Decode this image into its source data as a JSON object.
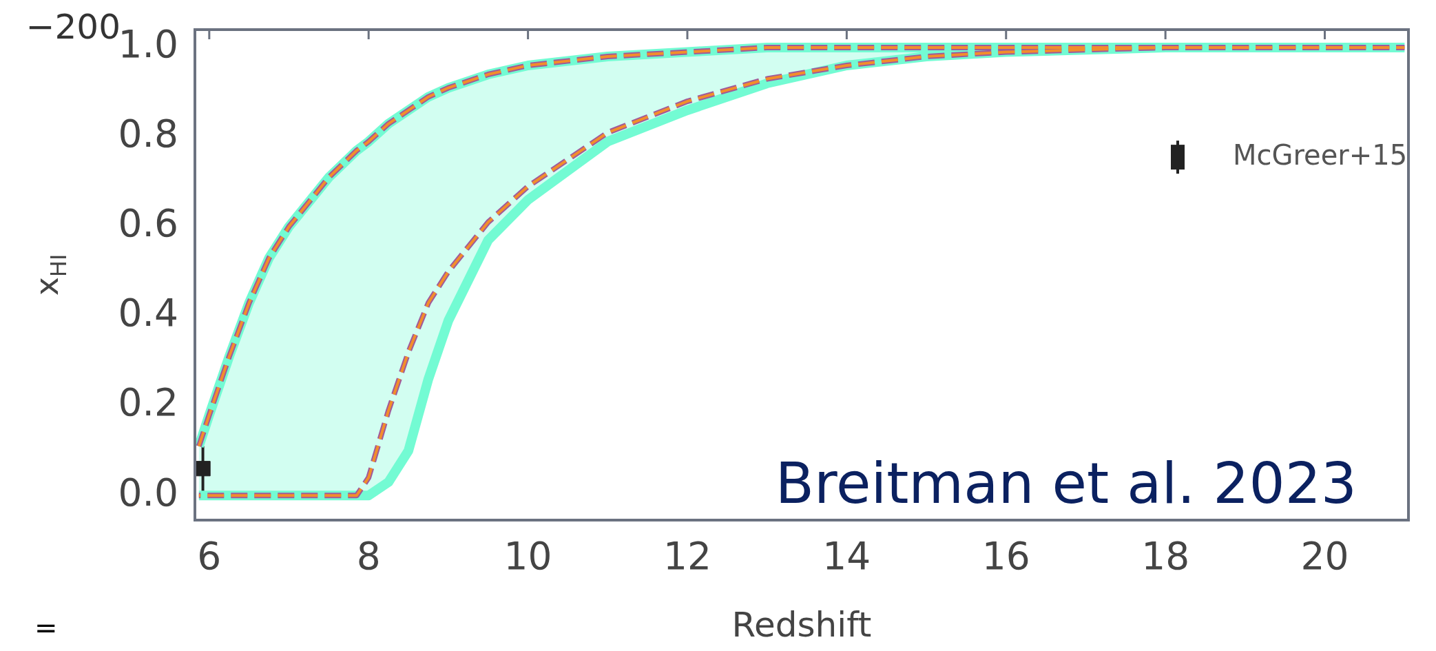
{
  "chart_data": {
    "type": "line",
    "xlabel": "Redshift",
    "ylabel": "x$_{HI}$",
    "x": [
      5.87,
      6,
      6.25,
      6.5,
      6.75,
      7,
      7.5,
      7.85,
      8,
      8.25,
      8.5,
      8.75,
      9,
      9.5,
      10,
      11,
      12,
      13,
      14,
      15,
      16,
      18,
      21
    ],
    "series": [
      {
        "color": "#73fbd3",
        "line_style": "solid",
        "values": [
          0.11,
          0.18,
          0.31,
          0.43,
          0.53,
          0.6,
          0.71,
          0.77,
          0.79,
          0.83,
          0.86,
          0.89,
          0.91,
          0.94,
          0.96,
          0.98,
          0.99,
          1.0,
          1.0,
          1.0,
          1.0,
          1.0,
          1.0
        ]
      },
      {
        "color": "#73fbd3",
        "line_style": "solid",
        "values": [
          0,
          0,
          0,
          0,
          0,
          0,
          0,
          0,
          0,
          0.03,
          0.1,
          0.26,
          0.39,
          0.57,
          0.66,
          0.79,
          0.86,
          0.92,
          0.96,
          0.98,
          0.99,
          1.0,
          1.0
        ],
        "lower": [
          0,
          0,
          0,
          0,
          0,
          0,
          0,
          0,
          0,
          0.03,
          0.1,
          0.26,
          0.39,
          0.57,
          0.66,
          0.79,
          0.86,
          0.92,
          0.96,
          0.98,
          0.99,
          1.0,
          1.0
        ],
        "upper": [
          0.11,
          0.18,
          0.31,
          0.43,
          0.53,
          0.6,
          0.71,
          0.77,
          0.79,
          0.83,
          0.86,
          0.89,
          0.91,
          0.94,
          0.96,
          0.98,
          0.99,
          1.0,
          1.0,
          1.0,
          1.0,
          1.0,
          1.0
        ]
      },
      {
        "color": "#f28e2b",
        "line_style": "dashed",
        "values": [
          0.11,
          0.18,
          0.31,
          0.43,
          0.53,
          0.6,
          0.71,
          0.77,
          0.79,
          0.83,
          0.86,
          0.89,
          0.91,
          0.94,
          0.96,
          0.98,
          0.99,
          1.0,
          1.0,
          1.0,
          1.0,
          1.0,
          1.0
        ]
      },
      {
        "color": "#f28e2b",
        "line_style": "dashed",
        "values": [
          0,
          0,
          0,
          0,
          0,
          0,
          0,
          0,
          0.04,
          0.19,
          0.32,
          0.43,
          0.5,
          0.61,
          0.69,
          0.81,
          0.88,
          0.93,
          0.96,
          0.98,
          0.99,
          1.0,
          1.0
        ]
      },
      {
        "color": "#a05a9a",
        "line_style": "dashed",
        "values": [
          0.11,
          0.18,
          0.31,
          0.43,
          0.53,
          0.6,
          0.71,
          0.77,
          0.79,
          0.83,
          0.86,
          0.89,
          0.91,
          0.94,
          0.96,
          0.98,
          0.99,
          1.0,
          1.0,
          1.0,
          1.0,
          1.0,
          1.0
        ]
      },
      {
        "color": "#a05a9a",
        "line_style": "dashed",
        "values": [
          0,
          0,
          0,
          0,
          0,
          0,
          0,
          0,
          0.04,
          0.19,
          0.32,
          0.43,
          0.5,
          0.61,
          0.69,
          0.81,
          0.88,
          0.93,
          0.96,
          0.98,
          0.99,
          1.0,
          1.0
        ]
      },
      {
        "type": "scatter",
        "name": "McGreer+15",
        "color": "#222222",
        "marker": "square",
        "x": [
          5.92
        ],
        "values": [
          0.06
        ],
        "errors": [
          [
            0,
            0.11
          ]
        ]
      }
    ],
    "marker": "none",
    "xlim": [
      5.82,
      21.05
    ],
    "xticks": [
      6,
      8,
      10,
      12,
      14,
      16,
      18,
      20
    ],
    "ylim": [
      -0.055,
      1.04
    ],
    "yticks": [
      {
        "value": 0,
        "label": "0.0"
      },
      0.2,
      0.4,
      0.6,
      0.8,
      {
        "value": 1,
        "label": "1.0"
      }
    ],
    "grid": false,
    "legend": "right",
    "annotations": [
      "Breitman et al. 2023",
      "−200",
      "="
    ]
  }
}
